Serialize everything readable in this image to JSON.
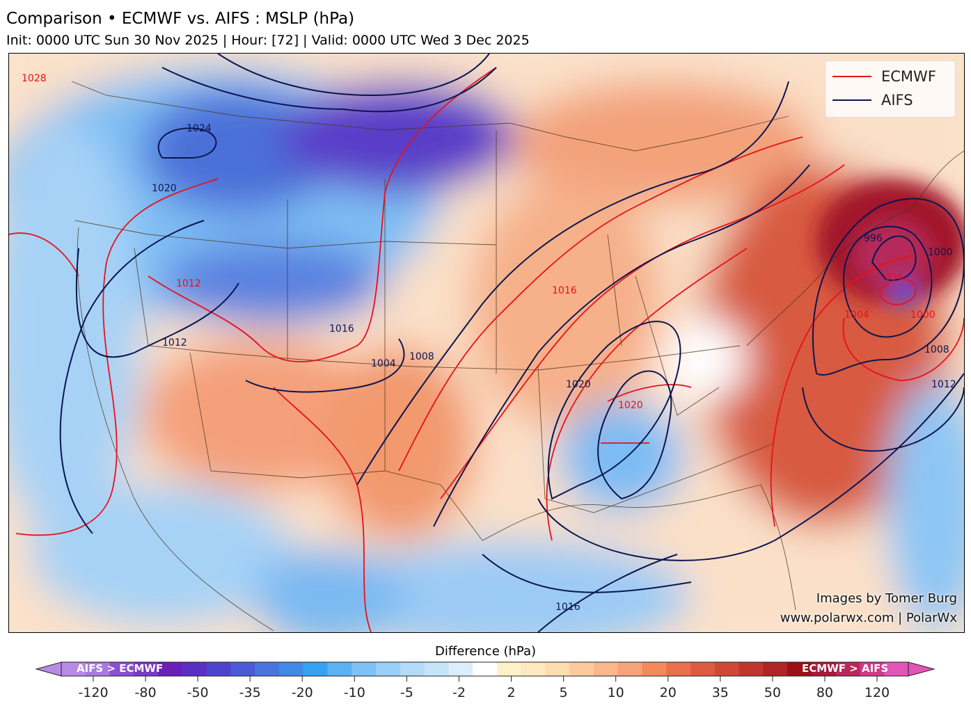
{
  "header": {
    "title": "Comparison • ECMWF vs. AIFS : MSLP (hPa)",
    "subtitle": "Init: 0000 UTC Sun 30 Nov 2025 | Hour: [72] | Valid: 0000 UTC Wed 3 Dec 2025"
  },
  "legend": {
    "items": [
      {
        "label": "ECMWF",
        "color": "#e8111a"
      },
      {
        "label": "AIFS",
        "color": "#0a1650"
      }
    ]
  },
  "contour_labels": [
    "1024",
    "1020",
    "1012",
    "1016",
    "1008",
    "1004",
    "1000",
    "996",
    "1020",
    "1016",
    "1012",
    "1008",
    "1004",
    "1000",
    "996",
    "1012",
    "1016",
    "1020",
    "1028"
  ],
  "credits": {
    "line1": "Images by Tomer Burg",
    "line2": "www.polarwx.com | PolarWx"
  },
  "colorbar": {
    "title": "Difference (hPa)",
    "left_label": "AIFS > ECMWF",
    "right_label": "ECMWF > AIFS",
    "ticks": [
      "-120",
      "-80",
      "-50",
      "-35",
      "-20",
      "-10",
      "-5",
      "-2",
      "2",
      "5",
      "10",
      "20",
      "35",
      "50",
      "80",
      "120"
    ],
    "colors": [
      "#b98ae6",
      "#a97ae0",
      "#8a4fd2",
      "#7a38c9",
      "#6a1fb8",
      "#5a30c4",
      "#4c44cc",
      "#4a5ad6",
      "#4a74e0",
      "#3f8ae6",
      "#35a2f2",
      "#5ab2f4",
      "#7cc2f6",
      "#98cff7",
      "#b2dbf8",
      "#c6e4f9",
      "#daeefb",
      "#ffffff",
      "#fdf1c8",
      "#fde9be",
      "#fddcb0",
      "#fbcb9c",
      "#f9b78a",
      "#f7a379",
      "#f38a5c",
      "#e8704a",
      "#dd5a40",
      "#cf4836",
      "#c0352e",
      "#b02425",
      "#9e0f18",
      "#a81a3a",
      "#b82858",
      "#cf3a8a",
      "#e254b8"
    ]
  }
}
